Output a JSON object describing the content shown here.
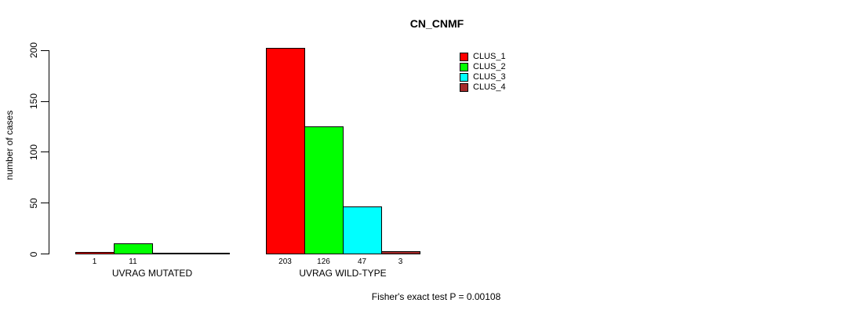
{
  "title": "CN_CNMF",
  "ylabel": "number of cases",
  "footer": "Fisher's exact test P = 0.00108",
  "legend": {
    "items": [
      {
        "label": "CLUS_1",
        "color": "#FF0000"
      },
      {
        "label": "CLUS_2",
        "color": "#00FF00"
      },
      {
        "label": "CLUS_3",
        "color": "#00FFFF"
      },
      {
        "label": "CLUS_4",
        "color": "#A52A2A"
      }
    ]
  },
  "chart_data": {
    "type": "bar",
    "title": "CN_CNMF",
    "ylabel": "number of cases",
    "xlabel": "",
    "ylim": [
      0,
      200
    ],
    "yticks": [
      0,
      50,
      100,
      150,
      200
    ],
    "grid": false,
    "legend_position": "top-right",
    "series": [
      "CLUS_1",
      "CLUS_2",
      "CLUS_3",
      "CLUS_4"
    ],
    "series_colors": [
      "#FF0000",
      "#00FF00",
      "#00FFFF",
      "#A52A2A"
    ],
    "groups": [
      {
        "label": "UVRAG MUTATED",
        "bars": [
          {
            "series": "CLUS_1",
            "value": 1,
            "label": "1"
          },
          {
            "series": "CLUS_2",
            "value": 11,
            "label": "11"
          },
          {
            "series": "CLUS_3",
            "value": 0,
            "label": ""
          },
          {
            "series": "CLUS_4",
            "value": 0,
            "label": ""
          }
        ]
      },
      {
        "label": "UVRAG WILD-TYPE",
        "bars": [
          {
            "series": "CLUS_1",
            "value": 203,
            "label": "203"
          },
          {
            "series": "CLUS_2",
            "value": 126,
            "label": "126"
          },
          {
            "series": "CLUS_3",
            "value": 47,
            "label": "47"
          },
          {
            "series": "CLUS_4",
            "value": 3,
            "label": "3"
          }
        ]
      }
    ],
    "annotation": "Fisher's exact test P = 0.00108"
  }
}
